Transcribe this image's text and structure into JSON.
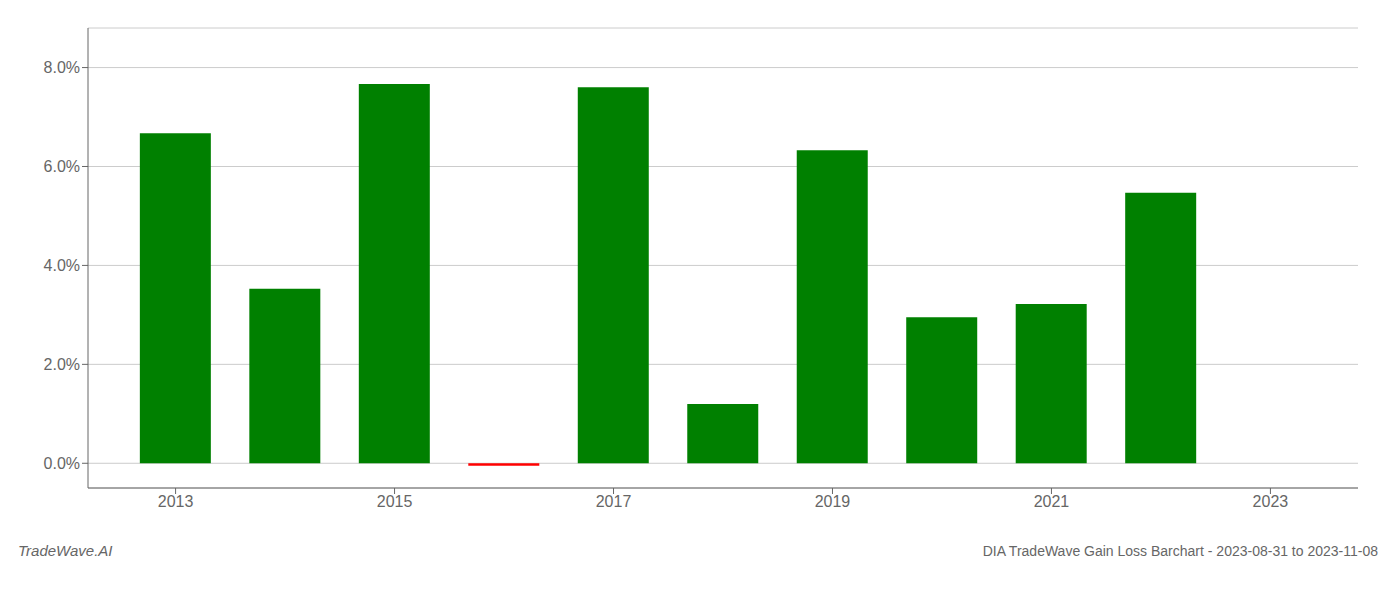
{
  "chart_data": {
    "type": "bar",
    "title": "DIA TradeWave Gain Loss Barchart - 2023-08-31 to 2023-11-08",
    "annotations": [
      "TradeWave.AI"
    ],
    "x": [
      2013,
      2014,
      2015,
      2016,
      2017,
      2018,
      2019,
      2020,
      2021,
      2022
    ],
    "values": [
      0.0667,
      0.0353,
      0.0767,
      -0.0005,
      0.076,
      0.012,
      0.0633,
      0.0295,
      0.0322,
      0.0547
    ],
    "colors": [
      "#008000",
      "#008000",
      "#008000",
      "#ff0000",
      "#008000",
      "#008000",
      "#008000",
      "#008000",
      "#008000",
      "#008000"
    ],
    "xlim": [
      2012.2,
      2023.8
    ],
    "xticks": [
      2013,
      2015,
      2017,
      2019,
      2021,
      2023
    ],
    "ylim": [
      -0.005,
      0.088
    ],
    "yticks": [
      {
        "value": 0.0,
        "label": "0.0%"
      },
      {
        "value": 0.02,
        "label": "2.0%"
      },
      {
        "value": 0.04,
        "label": "4.0%"
      },
      {
        "value": 0.06,
        "label": "6.0%"
      },
      {
        "value": 0.08,
        "label": "8.0%"
      }
    ],
    "grid": "y"
  }
}
